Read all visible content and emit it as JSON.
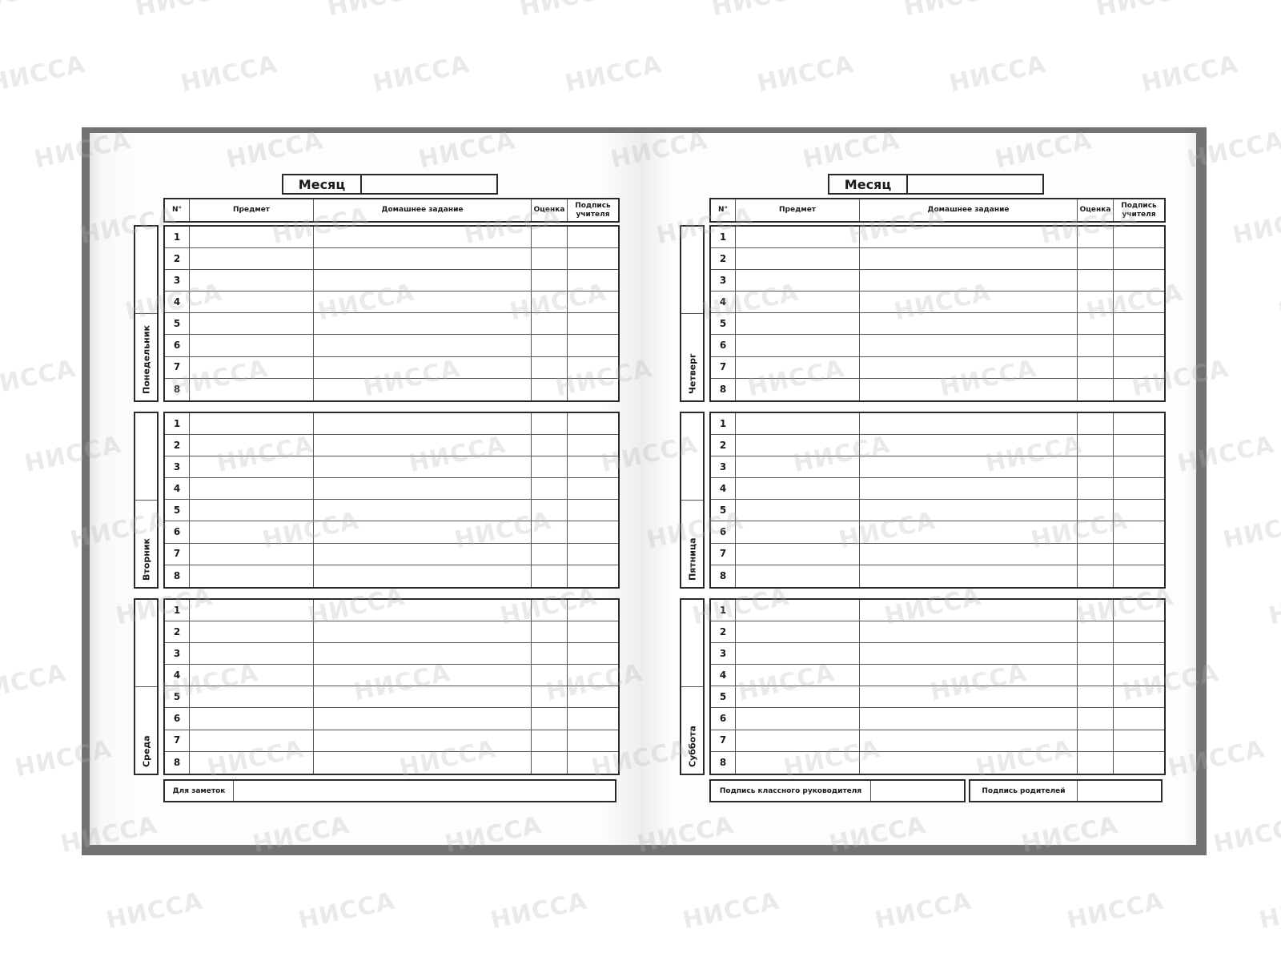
{
  "watermark": "НИССА",
  "columns": {
    "num": "N°",
    "subject": "Предмет",
    "homework": "Домашнее задание",
    "grade": "Оценка",
    "signature": "Подпись учителя"
  },
  "lesson_numbers": [
    "1",
    "2",
    "3",
    "4",
    "5",
    "6",
    "7",
    "8"
  ],
  "left_page": {
    "month_label": "Месяц",
    "days": [
      "Понедельник",
      "Вторник",
      "Среда"
    ],
    "notes_label": "Для заметок"
  },
  "right_page": {
    "month_label": "Месяц",
    "days": [
      "Четверг",
      "Пятница",
      "Суббота"
    ],
    "class_teacher_signature_label": "Подпись классного руководителя",
    "parents_signature_label": "Подпись родителей"
  },
  "colors": {
    "cover": "#727272",
    "lines": "#2a2a2a"
  }
}
